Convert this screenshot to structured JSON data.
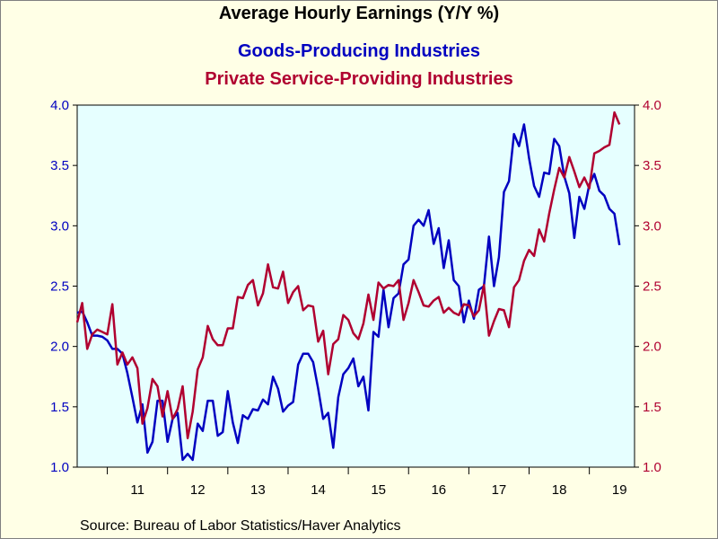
{
  "chart_data": {
    "type": "line",
    "title": "Average Hourly Earnings (Y/Y %)",
    "ylim": [
      1.0,
      4.0
    ],
    "yticks": [
      "4.0",
      "3.5",
      "3.0",
      "2.5",
      "2.0",
      "1.5",
      "1.0"
    ],
    "x_start": 2010.5,
    "x_end": 2019.75,
    "x_tick_labels": [
      "11",
      "12",
      "13",
      "14",
      "15",
      "16",
      "17",
      "18",
      "19"
    ],
    "grid": false,
    "series": [
      {
        "name": "Goods-Producing Industries",
        "color": "#0000c0",
        "axis": "left",
        "values": [
          2.28,
          2.29,
          2.2,
          2.09,
          2.09,
          2.08,
          2.05,
          1.98,
          1.98,
          1.94,
          1.78,
          1.58,
          1.37,
          1.52,
          1.12,
          1.21,
          1.55,
          1.55,
          1.21,
          1.4,
          1.45,
          1.06,
          1.11,
          1.06,
          1.36,
          1.3,
          1.55,
          1.55,
          1.26,
          1.29,
          1.63,
          1.37,
          1.2,
          1.43,
          1.4,
          1.48,
          1.47,
          1.56,
          1.52,
          1.75,
          1.65,
          1.46,
          1.51,
          1.54,
          1.85,
          1.94,
          1.94,
          1.87,
          1.65,
          1.4,
          1.45,
          1.16,
          1.58,
          1.77,
          1.82,
          1.9,
          1.67,
          1.75,
          1.47,
          2.12,
          2.08,
          2.47,
          2.16,
          2.4,
          2.44,
          2.68,
          2.72,
          3.0,
          3.05,
          3.0,
          3.13,
          2.85,
          2.98,
          2.65,
          2.88,
          2.55,
          2.5,
          2.2,
          2.38,
          2.23,
          2.47,
          2.5,
          2.91,
          2.5,
          2.74,
          3.28,
          3.37,
          3.76,
          3.66,
          3.84,
          3.56,
          3.33,
          3.24,
          3.44,
          3.43,
          3.72,
          3.66,
          3.41,
          3.27,
          2.9,
          3.24,
          3.14,
          3.34,
          3.43,
          3.29,
          3.25,
          3.14,
          3.1,
          2.84
        ]
      },
      {
        "name": "Private Service-Providing Industries",
        "color": "#b00030",
        "axis": "right",
        "values": [
          2.2,
          2.36,
          1.98,
          2.1,
          2.14,
          2.12,
          2.1,
          2.35,
          1.85,
          1.95,
          1.85,
          1.91,
          1.82,
          1.36,
          1.49,
          1.73,
          1.67,
          1.42,
          1.63,
          1.4,
          1.48,
          1.67,
          1.24,
          1.46,
          1.81,
          1.91,
          2.17,
          2.06,
          2.01,
          2.01,
          2.15,
          2.15,
          2.41,
          2.4,
          2.51,
          2.55,
          2.34,
          2.44,
          2.68,
          2.49,
          2.48,
          2.62,
          2.36,
          2.45,
          2.5,
          2.3,
          2.34,
          2.33,
          2.04,
          2.13,
          1.77,
          2.02,
          2.06,
          2.26,
          2.22,
          2.11,
          2.06,
          2.19,
          2.43,
          2.22,
          2.53,
          2.48,
          2.51,
          2.5,
          2.55,
          2.22,
          2.36,
          2.55,
          2.45,
          2.34,
          2.33,
          2.38,
          2.41,
          2.28,
          2.32,
          2.28,
          2.26,
          2.35,
          2.34,
          2.25,
          2.3,
          2.51,
          2.09,
          2.21,
          2.31,
          2.3,
          2.16,
          2.49,
          2.55,
          2.71,
          2.8,
          2.75,
          2.97,
          2.87,
          3.1,
          3.3,
          3.48,
          3.4,
          3.57,
          3.45,
          3.32,
          3.4,
          3.31,
          3.6,
          3.62,
          3.65,
          3.67,
          3.94,
          3.84
        ]
      }
    ]
  },
  "titles": {
    "main": "Average Hourly Earnings (Y/Y %)",
    "series1": "Goods-Producing Industries",
    "series2": "Private Service-Providing Industries"
  },
  "source": "Source:  Bureau of Labor Statistics/Haver Analytics",
  "colors": {
    "background": "#ffffe6",
    "plot": "#e6ffff",
    "left_axis": "#0000c0",
    "right_axis": "#b00030"
  }
}
